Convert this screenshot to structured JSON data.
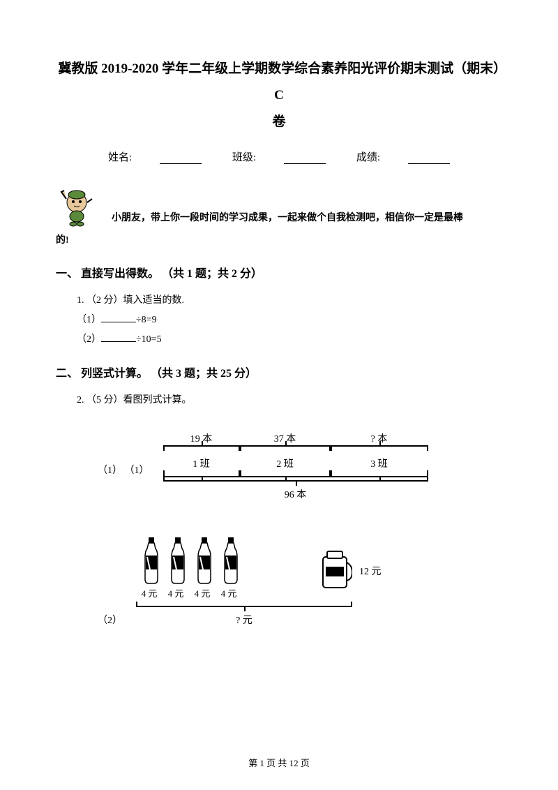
{
  "title_line1": "冀教版 2019-2020 学年二年级上学期数学综合素养阳光评价期末测试（期末）C",
  "title_line2": "卷",
  "info": {
    "name_label": "姓名:",
    "class_label": "班级:",
    "score_label": "成绩:"
  },
  "intro": {
    "line1": "小朋友，带上你一段时间的学习成果，一起来做个自我检测吧，相信你一定是最棒",
    "line2": "的!"
  },
  "section1": {
    "title": "一、 直接写出得数。 （共 1 题；共 2 分）",
    "q1": "1. （2 分）填入适当的数.",
    "sub1_label": "（1）",
    "sub1_expr": "÷8=9",
    "sub2_label": "（2）",
    "sub2_expr": "÷10=5"
  },
  "section2": {
    "title": "二、 列竖式计算。 （共 3 题；共 25 分）",
    "q2": "2. （5 分）看图列式计算。",
    "sub1_label": "（1） （1）",
    "sub2_label": "（2）",
    "diagram1": {
      "top": [
        "19 本",
        "37 本",
        "? 本"
      ],
      "mid": [
        "1 班",
        "2 班",
        "3 班"
      ],
      "bottom": "96 本",
      "widths": [
        110,
        130,
        140
      ]
    },
    "diagram2": {
      "bottle_prices": [
        "4 元",
        "4 元",
        "4 元",
        "4 元"
      ],
      "jug_label": "12 元",
      "total": "? 元",
      "bottle_positions": [
        8,
        46,
        84,
        122
      ]
    }
  },
  "footer": "第 1 页 共 12 页",
  "colors": {
    "text": "#000000",
    "bg": "#ffffff",
    "mascot_green": "#5a8a3a",
    "mascot_skin": "#e8c89a"
  }
}
